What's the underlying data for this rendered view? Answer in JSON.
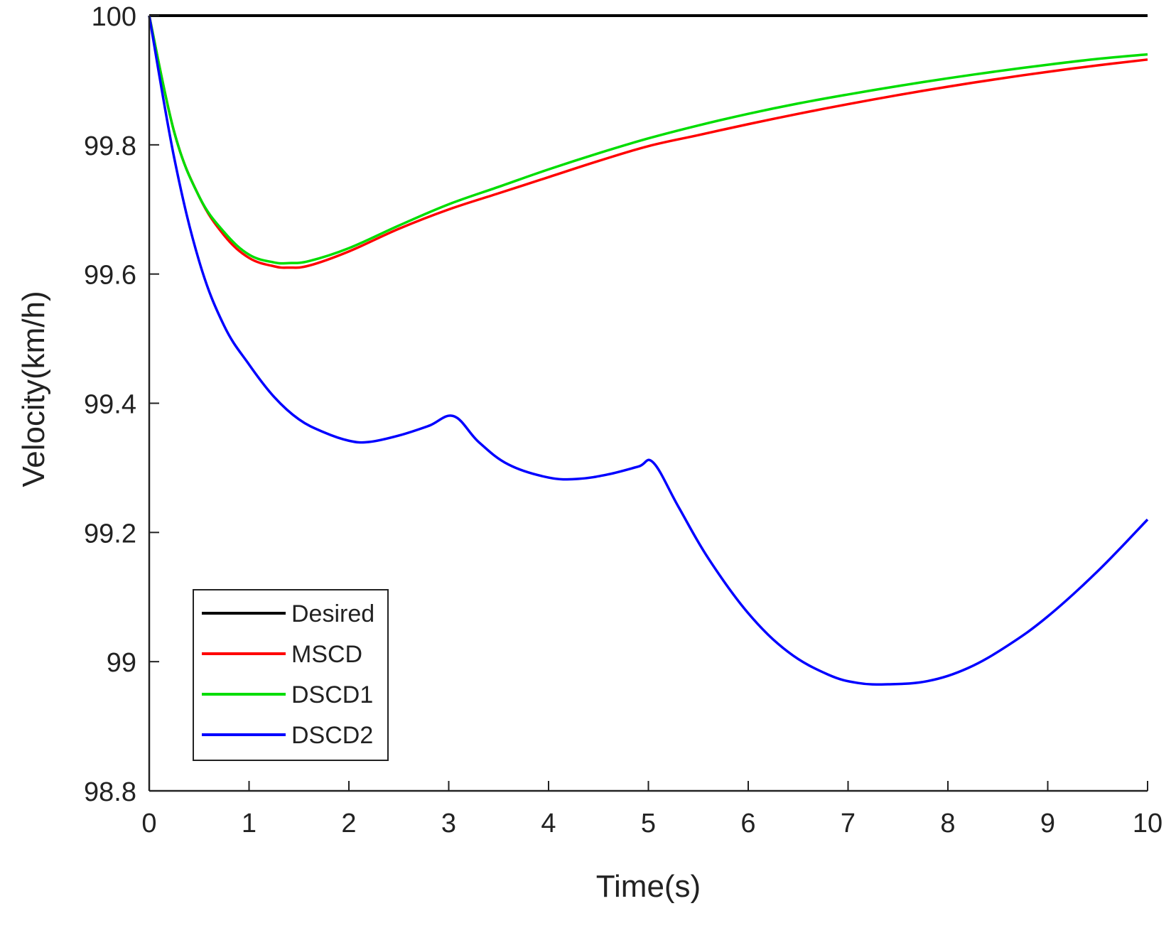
{
  "chart_data": {
    "type": "line",
    "title": "",
    "xlabel": "Time(s)",
    "ylabel": "Velocity(km/h)",
    "xlim": [
      0,
      10
    ],
    "ylim": [
      98.8,
      100
    ],
    "xticks": [
      "0",
      "1",
      "2",
      "3",
      "4",
      "5",
      "6",
      "7",
      "8",
      "9",
      "10"
    ],
    "yticks": [
      "98.8",
      "99",
      "99.2",
      "99.4",
      "99.6",
      "99.8",
      "100"
    ],
    "grid": false,
    "legend_position": "bottom-left",
    "series": [
      {
        "name": "Desired",
        "color": "#000000",
        "x": [
          0,
          10
        ],
        "y": [
          100,
          100
        ]
      },
      {
        "name": "MSCD",
        "color": "#ff0000",
        "x": [
          0,
          0.25,
          0.5,
          0.75,
          1.0,
          1.25,
          1.4,
          1.6,
          2.0,
          2.5,
          3.0,
          3.5,
          4.0,
          4.5,
          5.0,
          5.5,
          6.0,
          6.5,
          7.0,
          7.5,
          8.0,
          8.5,
          9.0,
          9.5,
          10.0
        ],
        "y": [
          100,
          99.82,
          99.72,
          99.66,
          99.625,
          99.612,
          99.61,
          99.613,
          99.635,
          99.67,
          99.7,
          99.725,
          99.75,
          99.775,
          99.798,
          99.815,
          99.832,
          99.848,
          99.863,
          99.877,
          99.89,
          99.902,
          99.913,
          99.923,
          99.932
        ]
      },
      {
        "name": "DSCD1",
        "color": "#00dd00",
        "x": [
          0,
          0.25,
          0.5,
          0.75,
          1.0,
          1.25,
          1.4,
          1.6,
          2.0,
          2.5,
          3.0,
          3.5,
          4.0,
          4.5,
          5.0,
          5.5,
          6.0,
          6.5,
          7.0,
          7.5,
          8.0,
          8.5,
          9.0,
          9.5,
          10.0
        ],
        "y": [
          100,
          99.82,
          99.72,
          99.665,
          99.63,
          99.618,
          99.617,
          99.62,
          99.64,
          99.675,
          99.708,
          99.735,
          99.762,
          99.787,
          99.81,
          99.83,
          99.848,
          99.864,
          99.878,
          99.891,
          99.903,
          99.914,
          99.924,
          99.933,
          99.94
        ]
      },
      {
        "name": "DSCD2",
        "color": "#0000ff",
        "x": [
          0,
          0.25,
          0.5,
          0.75,
          1.0,
          1.25,
          1.5,
          1.75,
          2.0,
          2.2,
          2.5,
          2.8,
          3.05,
          3.3,
          3.6,
          4.0,
          4.3,
          4.6,
          4.9,
          5.05,
          5.3,
          5.6,
          6.0,
          6.4,
          6.8,
          7.1,
          7.4,
          7.8,
          8.2,
          8.6,
          9.0,
          9.5,
          10.0
        ],
        "y": [
          100,
          99.78,
          99.62,
          99.52,
          99.46,
          99.41,
          99.375,
          99.355,
          99.342,
          99.34,
          99.35,
          99.365,
          99.38,
          99.34,
          99.305,
          99.285,
          99.283,
          99.29,
          99.302,
          99.308,
          99.24,
          99.16,
          99.075,
          99.015,
          98.98,
          98.967,
          98.965,
          98.97,
          98.99,
          99.025,
          99.07,
          99.14,
          99.22
        ]
      }
    ]
  }
}
